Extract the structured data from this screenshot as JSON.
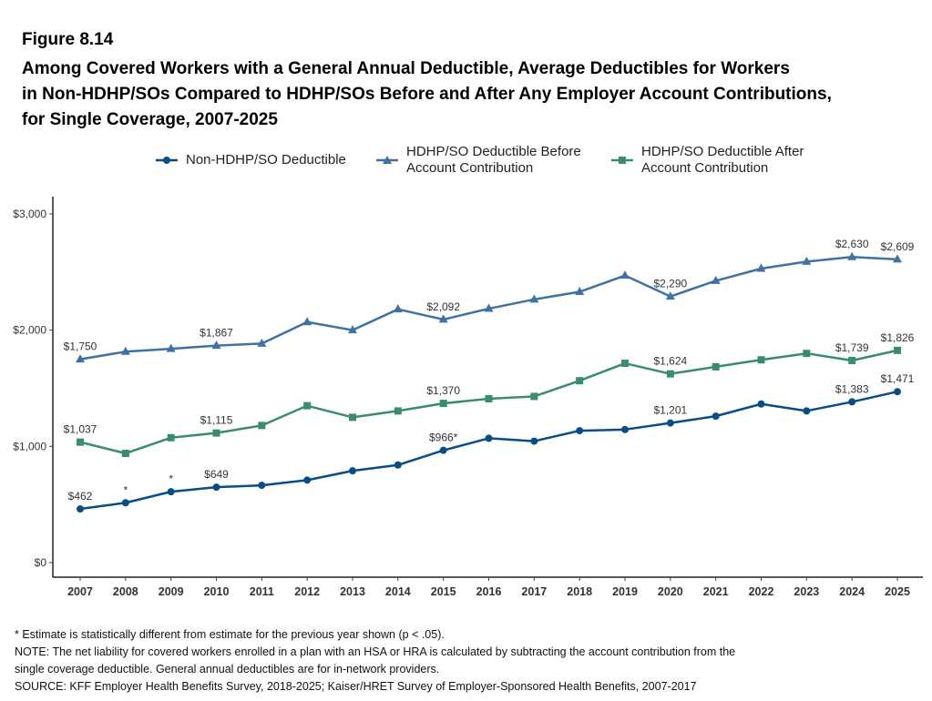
{
  "figure_label": "Figure 8.14",
  "title_lines": [
    "Among Covered Workers with a General Annual Deductible, Average Deductibles for Workers",
    "in Non-HDHP/SOs Compared to HDHP/SOs Before and After Any Employer Account Contributions,",
    "for Single Coverage, 2007-2025"
  ],
  "legend": [
    {
      "lines": [
        "Non-HDHP/SO Deductible"
      ],
      "color": "#0a4d85",
      "marker": "circle"
    },
    {
      "lines": [
        "HDHP/SO Deductible Before",
        "Account Contribution"
      ],
      "color": "#3f72a3",
      "marker": "triangle"
    },
    {
      "lines": [
        "HDHP/SO Deductible After",
        "Account Contribution"
      ],
      "color": "#3a8a74",
      "marker": "square"
    }
  ],
  "notes": [
    "* Estimate is statistically different from estimate for the previous year shown (p < .05).",
    "NOTE: The net liability for covered workers enrolled in a plan with an HSA or HRA is calculated by subtracting the account contribution from the",
    "single coverage deductible. General annual deductibles are for in-network providers.",
    "SOURCE: KFF Employer Health Benefits Survey, 2018-2025; Kaiser/HRET Survey of Employer-Sponsored Health Benefits, 2007-2017"
  ],
  "chart_data": {
    "type": "line",
    "categories": [
      "2007",
      "2008",
      "2009",
      "2010",
      "2011",
      "2012",
      "2013",
      "2014",
      "2015",
      "2016",
      "2017",
      "2018",
      "2019",
      "2020",
      "2021",
      "2022",
      "2023",
      "2024",
      "2025"
    ],
    "ylim": [
      0,
      3000
    ],
    "yticks": [
      {
        "value": 0,
        "label": "$0"
      },
      {
        "value": 1000,
        "label": "$1,000"
      },
      {
        "value": 2000,
        "label": "$2,000"
      },
      {
        "value": 3000,
        "label": "$3,000"
      }
    ],
    "series": [
      {
        "name": "HDHP/SO Deductible Before Account Contribution",
        "color": "#3f72a3",
        "marker": "triangle",
        "values": [
          1750,
          1815,
          1840,
          1867,
          1885,
          2070,
          2000,
          2180,
          2092,
          2185,
          2265,
          2330,
          2470,
          2290,
          2425,
          2530,
          2590,
          2630,
          2609
        ],
        "labels": [
          {
            "index": 0,
            "text": "$1,750"
          },
          {
            "index": 3,
            "text": "$1,867"
          },
          {
            "index": 8,
            "text": "$2,092"
          },
          {
            "index": 13,
            "text": "$2,290"
          },
          {
            "index": 17,
            "text": "$2,630"
          },
          {
            "index": 18,
            "text": "$2,609"
          }
        ]
      },
      {
        "name": "HDHP/SO Deductible After Account Contribution",
        "color": "#3a8a74",
        "marker": "square",
        "values": [
          1037,
          940,
          1075,
          1115,
          1180,
          1350,
          1250,
          1305,
          1370,
          1410,
          1430,
          1565,
          1715,
          1624,
          1685,
          1745,
          1800,
          1739,
          1826
        ],
        "labels": [
          {
            "index": 0,
            "text": "$1,037"
          },
          {
            "index": 3,
            "text": "$1,115"
          },
          {
            "index": 8,
            "text": "$1,370"
          },
          {
            "index": 13,
            "text": "$1,624"
          },
          {
            "index": 17,
            "text": "$1,739"
          },
          {
            "index": 18,
            "text": "$1,826"
          }
        ]
      },
      {
        "name": "Non-HDHP/SO Deductible",
        "color": "#0a4d85",
        "marker": "circle",
        "values": [
          462,
          515,
          610,
          649,
          665,
          710,
          790,
          840,
          966,
          1070,
          1045,
          1135,
          1145,
          1201,
          1260,
          1365,
          1305,
          1383,
          1471
        ],
        "labels": [
          {
            "index": 0,
            "text": "$462"
          },
          {
            "index": 1,
            "text": "*"
          },
          {
            "index": 2,
            "text": "*"
          },
          {
            "index": 3,
            "text": "$649"
          },
          {
            "index": 8,
            "text": "$966*"
          },
          {
            "index": 13,
            "text": "$1,201"
          },
          {
            "index": 17,
            "text": "$1,383"
          },
          {
            "index": 18,
            "text": "$1,471"
          }
        ]
      }
    ]
  }
}
